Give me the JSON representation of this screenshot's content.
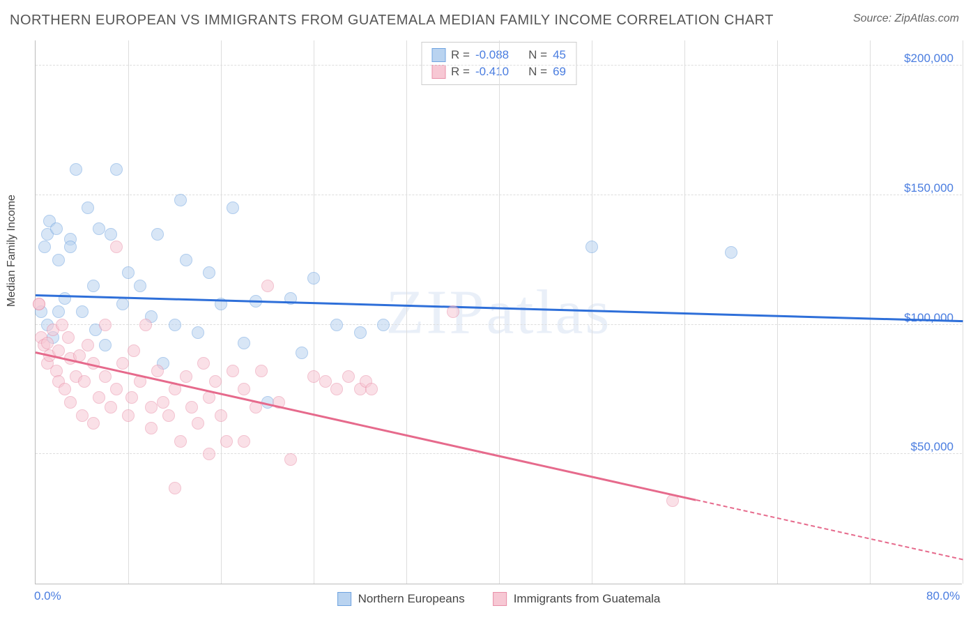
{
  "header": {
    "title": "NORTHERN EUROPEAN VS IMMIGRANTS FROM GUATEMALA MEDIAN FAMILY INCOME CORRELATION CHART",
    "source": "Source: ZipAtlas.com"
  },
  "watermark": "ZIPatlas",
  "chart": {
    "type": "scatter",
    "ylabel": "Median Family Income",
    "xlim": [
      0,
      80
    ],
    "ylim": [
      0,
      210000
    ],
    "background_color": "#ffffff",
    "grid_color": "#dddddd",
    "axis_color": "#bbbbbb",
    "tick_label_color": "#4a7de0",
    "tick_fontsize": 17,
    "label_fontsize": 16,
    "title_fontsize": 20,
    "title_color": "#555555",
    "y_gridlines": [
      50000,
      100000,
      150000,
      200000
    ],
    "y_tick_labels": [
      "$50,000",
      "$100,000",
      "$150,000",
      "$200,000"
    ],
    "x_gridlines": [
      8,
      16,
      24,
      32,
      40,
      48,
      56,
      64,
      72,
      80
    ],
    "x_tick_labels": {
      "0": "0.0%",
      "80": "80.0%"
    },
    "point_radius": 9,
    "point_opacity": 0.55,
    "series": [
      {
        "name": "Northern Europeans",
        "color_fill": "#b9d3f0",
        "color_stroke": "#6fa3e0",
        "r": "-0.088",
        "n": "45",
        "points": [
          [
            0.5,
            105000
          ],
          [
            0.8,
            130000
          ],
          [
            1.0,
            135000
          ],
          [
            1.0,
            100000
          ],
          [
            1.2,
            140000
          ],
          [
            1.5,
            95000
          ],
          [
            1.8,
            137000
          ],
          [
            2.0,
            125000
          ],
          [
            2.0,
            105000
          ],
          [
            2.5,
            110000
          ],
          [
            3.0,
            133000
          ],
          [
            3.0,
            130000
          ],
          [
            3.5,
            160000
          ],
          [
            4.0,
            105000
          ],
          [
            4.5,
            145000
          ],
          [
            5.0,
            115000
          ],
          [
            5.2,
            98000
          ],
          [
            5.5,
            137000
          ],
          [
            6.0,
            92000
          ],
          [
            6.5,
            135000
          ],
          [
            7.0,
            160000
          ],
          [
            7.5,
            108000
          ],
          [
            8.0,
            120000
          ],
          [
            9.0,
            115000
          ],
          [
            10.0,
            103000
          ],
          [
            10.5,
            135000
          ],
          [
            11.0,
            85000
          ],
          [
            12.0,
            100000
          ],
          [
            12.5,
            148000
          ],
          [
            13.0,
            125000
          ],
          [
            14.0,
            97000
          ],
          [
            15.0,
            120000
          ],
          [
            16.0,
            108000
          ],
          [
            17.0,
            145000
          ],
          [
            18.0,
            93000
          ],
          [
            19.0,
            109000
          ],
          [
            20.0,
            70000
          ],
          [
            22.0,
            110000
          ],
          [
            23.0,
            89000
          ],
          [
            24.0,
            118000
          ],
          [
            26.0,
            100000
          ],
          [
            28.0,
            97000
          ],
          [
            30.0,
            100000
          ],
          [
            48.0,
            130000
          ],
          [
            60.0,
            128000
          ]
        ],
        "trend": {
          "x1": 0,
          "y1": 111000,
          "x2": 80,
          "y2": 101000,
          "color": "#2e6fd9",
          "width": 2.5
        }
      },
      {
        "name": "Immigrants from Guatemala",
        "color_fill": "#f7c8d4",
        "color_stroke": "#e98fa8",
        "r": "-0.410",
        "n": "69",
        "points": [
          [
            0.3,
            108000
          ],
          [
            0.3,
            108000
          ],
          [
            0.5,
            95000
          ],
          [
            0.7,
            92000
          ],
          [
            1.0,
            93000
          ],
          [
            1.0,
            85000
          ],
          [
            1.2,
            88000
          ],
          [
            1.5,
            98000
          ],
          [
            1.8,
            82000
          ],
          [
            2.0,
            90000
          ],
          [
            2.0,
            78000
          ],
          [
            2.3,
            100000
          ],
          [
            2.5,
            75000
          ],
          [
            2.8,
            95000
          ],
          [
            3.0,
            87000
          ],
          [
            3.0,
            70000
          ],
          [
            3.5,
            80000
          ],
          [
            3.8,
            88000
          ],
          [
            4.0,
            65000
          ],
          [
            4.2,
            78000
          ],
          [
            4.5,
            92000
          ],
          [
            5.0,
            85000
          ],
          [
            5.0,
            62000
          ],
          [
            5.5,
            72000
          ],
          [
            6.0,
            80000
          ],
          [
            6.0,
            100000
          ],
          [
            6.5,
            68000
          ],
          [
            7.0,
            75000
          ],
          [
            7.0,
            130000
          ],
          [
            7.5,
            85000
          ],
          [
            8.0,
            65000
          ],
          [
            8.3,
            72000
          ],
          [
            8.5,
            90000
          ],
          [
            9.0,
            78000
          ],
          [
            9.5,
            100000
          ],
          [
            10.0,
            60000
          ],
          [
            10.0,
            68000
          ],
          [
            10.5,
            82000
          ],
          [
            11.0,
            70000
          ],
          [
            11.5,
            65000
          ],
          [
            12.0,
            75000
          ],
          [
            12.0,
            37000
          ],
          [
            12.5,
            55000
          ],
          [
            13.0,
            80000
          ],
          [
            13.5,
            68000
          ],
          [
            14.0,
            62000
          ],
          [
            14.5,
            85000
          ],
          [
            15.0,
            50000
          ],
          [
            15.0,
            72000
          ],
          [
            15.5,
            78000
          ],
          [
            16.0,
            65000
          ],
          [
            16.5,
            55000
          ],
          [
            17.0,
            82000
          ],
          [
            18.0,
            55000
          ],
          [
            18.0,
            75000
          ],
          [
            19.0,
            68000
          ],
          [
            19.5,
            82000
          ],
          [
            20.0,
            115000
          ],
          [
            21.0,
            70000
          ],
          [
            22.0,
            48000
          ],
          [
            24.0,
            80000
          ],
          [
            25.0,
            78000
          ],
          [
            26.0,
            75000
          ],
          [
            27.0,
            80000
          ],
          [
            28.0,
            75000
          ],
          [
            28.5,
            78000
          ],
          [
            29.0,
            75000
          ],
          [
            36.0,
            105000
          ],
          [
            55.0,
            32000
          ]
        ],
        "trend": {
          "x1": 0,
          "y1": 89000,
          "x2": 57,
          "y2": 32000,
          "color": "#e66a8c",
          "width": 2.5,
          "dash_ext": {
            "x2": 80,
            "y2": 9000
          }
        }
      }
    ]
  },
  "legend_top": {
    "border_color": "#cccccc",
    "bg": "#ffffff",
    "r_label": "R =",
    "n_label": "N ="
  },
  "legend_bottom": {
    "items": [
      "Northern Europeans",
      "Immigrants from Guatemala"
    ]
  }
}
